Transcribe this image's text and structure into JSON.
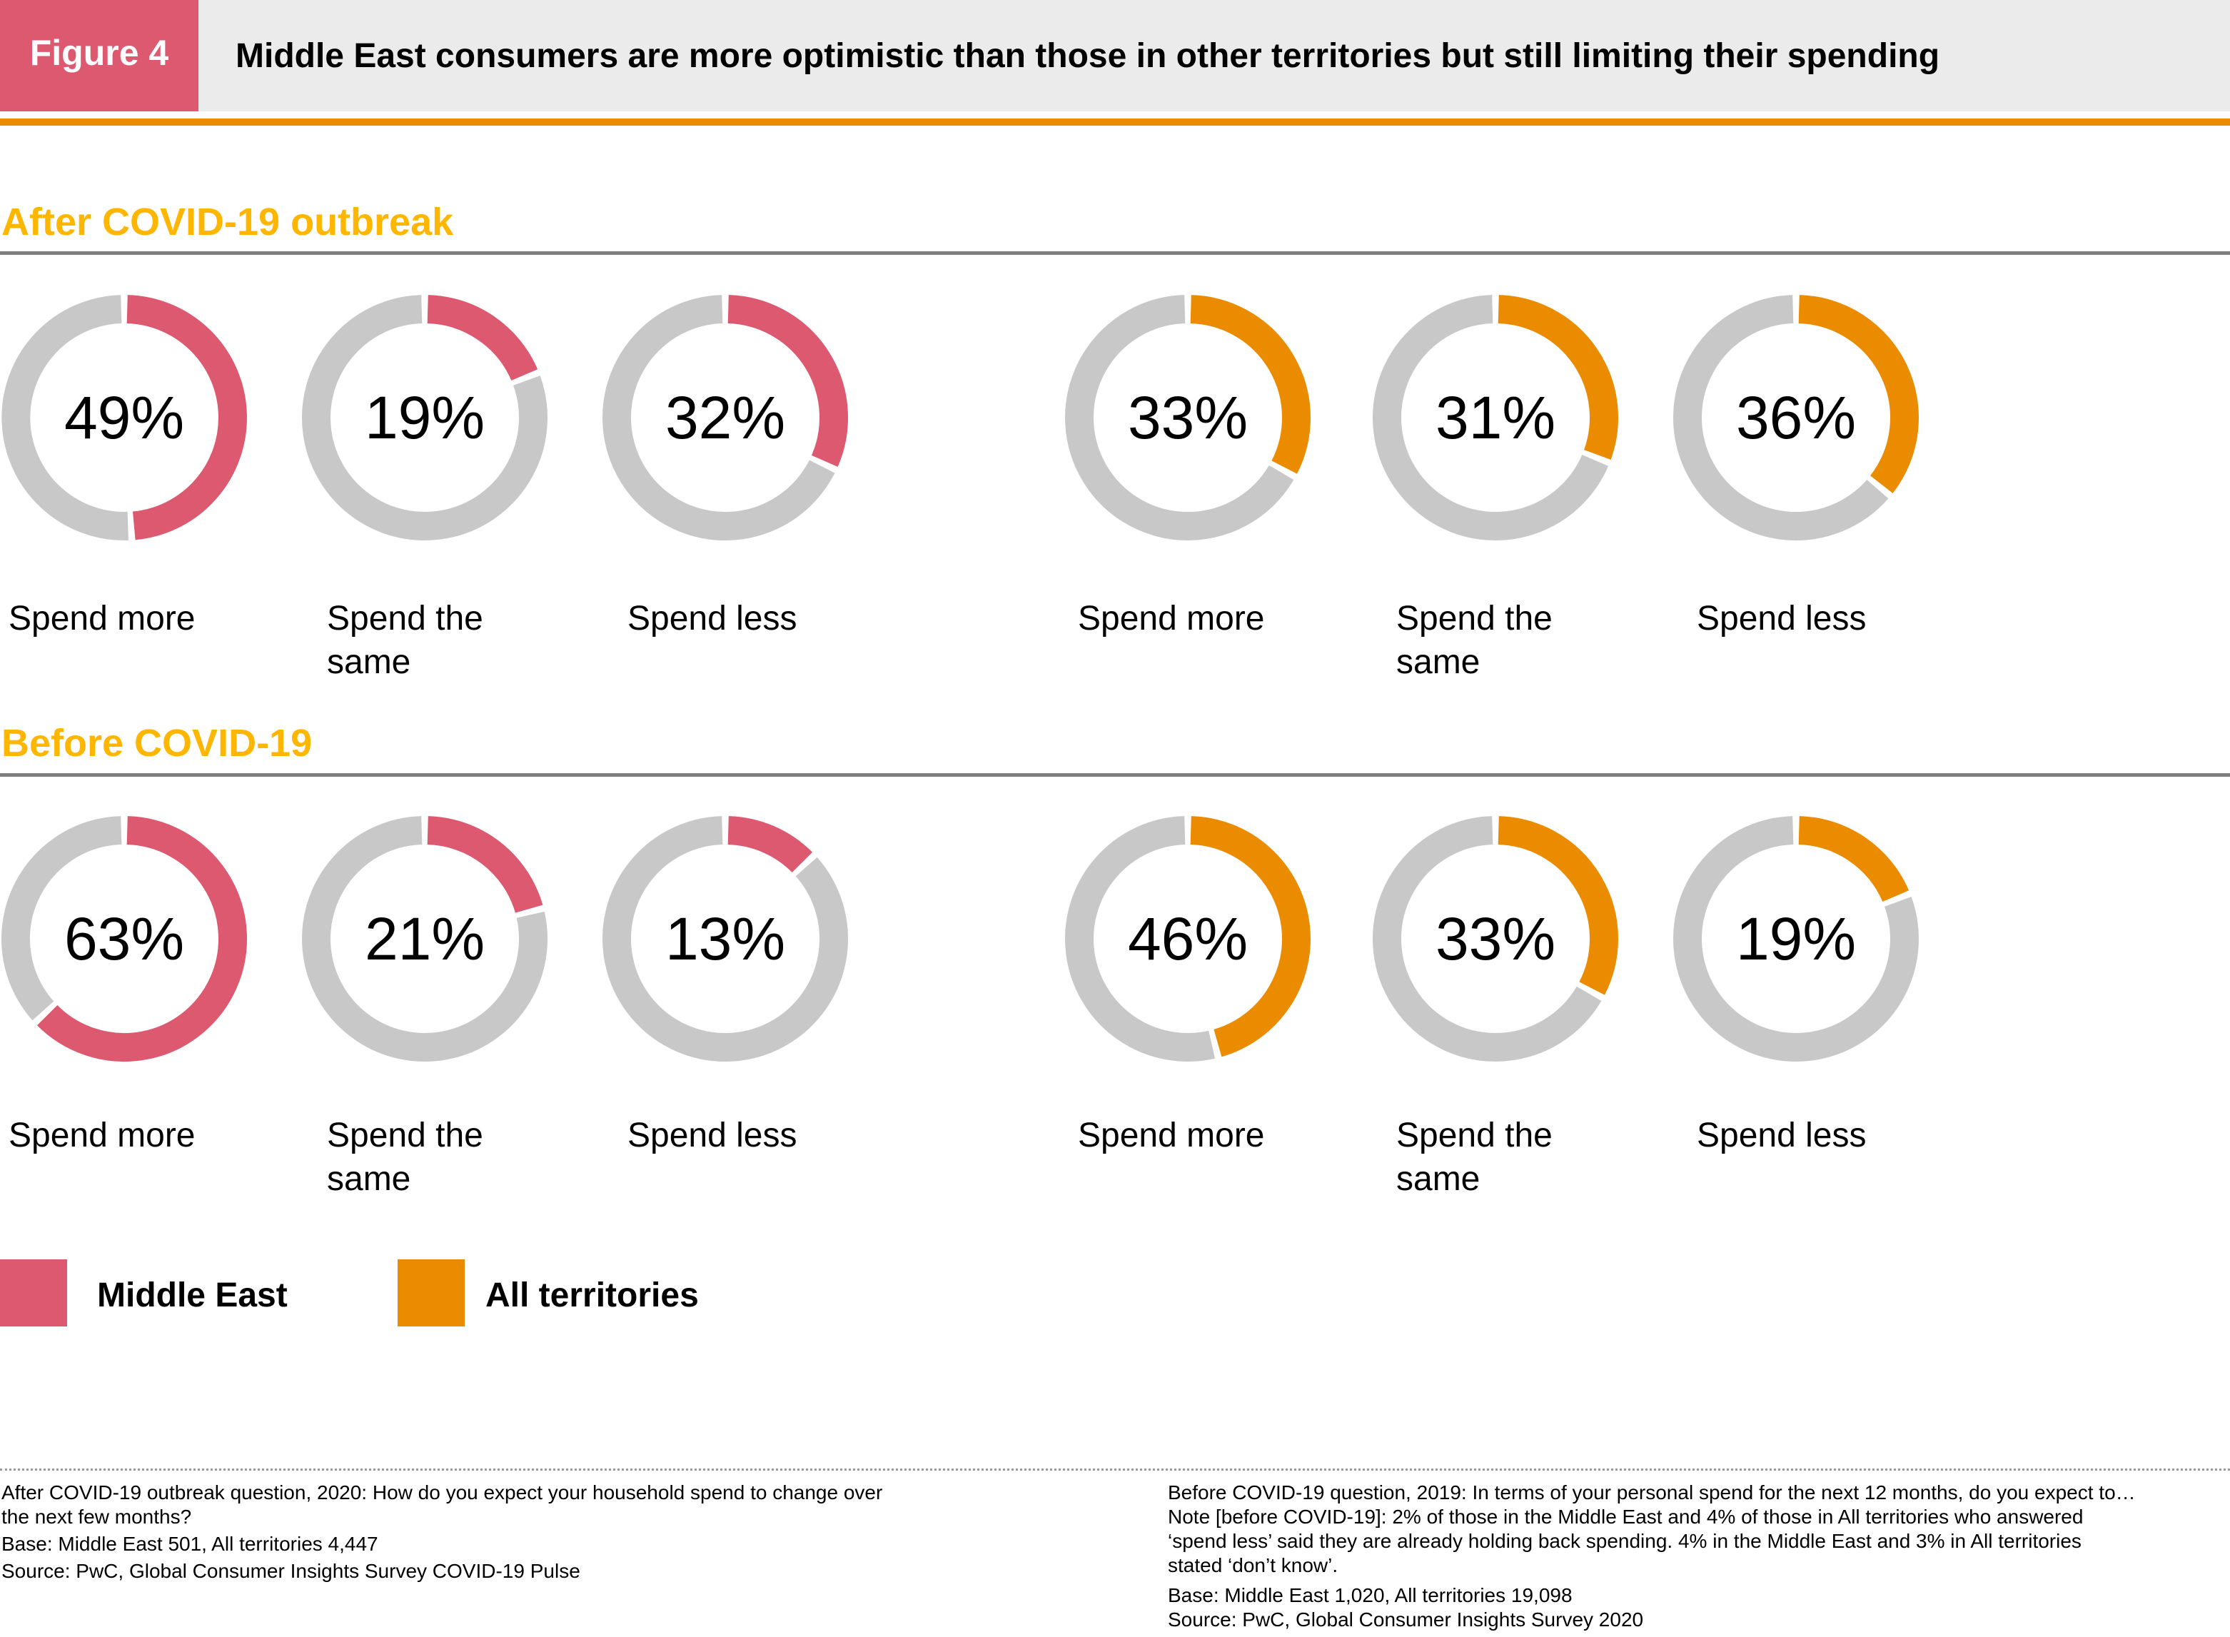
{
  "header": {
    "badge": "Figure 4",
    "title": "Middle East consumers are more optimistic than those in other territories but still limiting their spending"
  },
  "colors": {
    "middle_east": "#dc5970",
    "all_territories": "#eb8c00",
    "track": "#c8c8c8",
    "section_title": "#ffb600"
  },
  "sections": [
    {
      "title": "After COVID-19 outbreak"
    },
    {
      "title": "Before COVID-19"
    }
  ],
  "labels": {
    "spend_more": "Spend more",
    "spend_same_1": "Spend the",
    "spend_same_2": "same",
    "spend_less": "Spend less"
  },
  "legend": [
    {
      "label": "Middle East",
      "color": "#dc5970"
    },
    {
      "label": "All territories",
      "color": "#eb8c00"
    }
  ],
  "chart_data": [
    {
      "type": "donut",
      "title": "After COVID-19 outbreak",
      "categories": [
        "Spend more",
        "Spend the same",
        "Spend less"
      ],
      "series": [
        {
          "name": "Middle East",
          "values": [
            49,
            19,
            32
          ]
        },
        {
          "name": "All territories",
          "values": [
            33,
            31,
            36
          ]
        }
      ],
      "unit": "%"
    },
    {
      "type": "donut",
      "title": "Before COVID-19",
      "categories": [
        "Spend more",
        "Spend the same",
        "Spend less"
      ],
      "series": [
        {
          "name": "Middle East",
          "values": [
            63,
            21,
            13
          ]
        },
        {
          "name": "All territories",
          "values": [
            46,
            33,
            19
          ]
        }
      ],
      "unit": "%"
    }
  ],
  "notes": {
    "left": [
      "After COVID-19 outbreak question, 2020: How do you expect your household spend to change over",
      "the next few months?",
      "Base: Middle East 501, All territories 4,447",
      "Source: PwC, Global Consumer Insights Survey COVID-19 Pulse"
    ],
    "right": [
      "Before COVID-19 question, 2019: In terms of your personal spend for the next 12 months, do you expect to…",
      "Note [before COVID-19]: 2% of those in the Middle East and 4% of those in All territories who answered",
      "‘spend less’ said they are already holding back spending. 4% in the Middle East and 3% in All territories",
      "stated ‘don’t know’.",
      "Base: Middle East 1,020, All territories 19,098",
      "Source: PwC, Global Consumer Insights Survey 2020"
    ]
  }
}
